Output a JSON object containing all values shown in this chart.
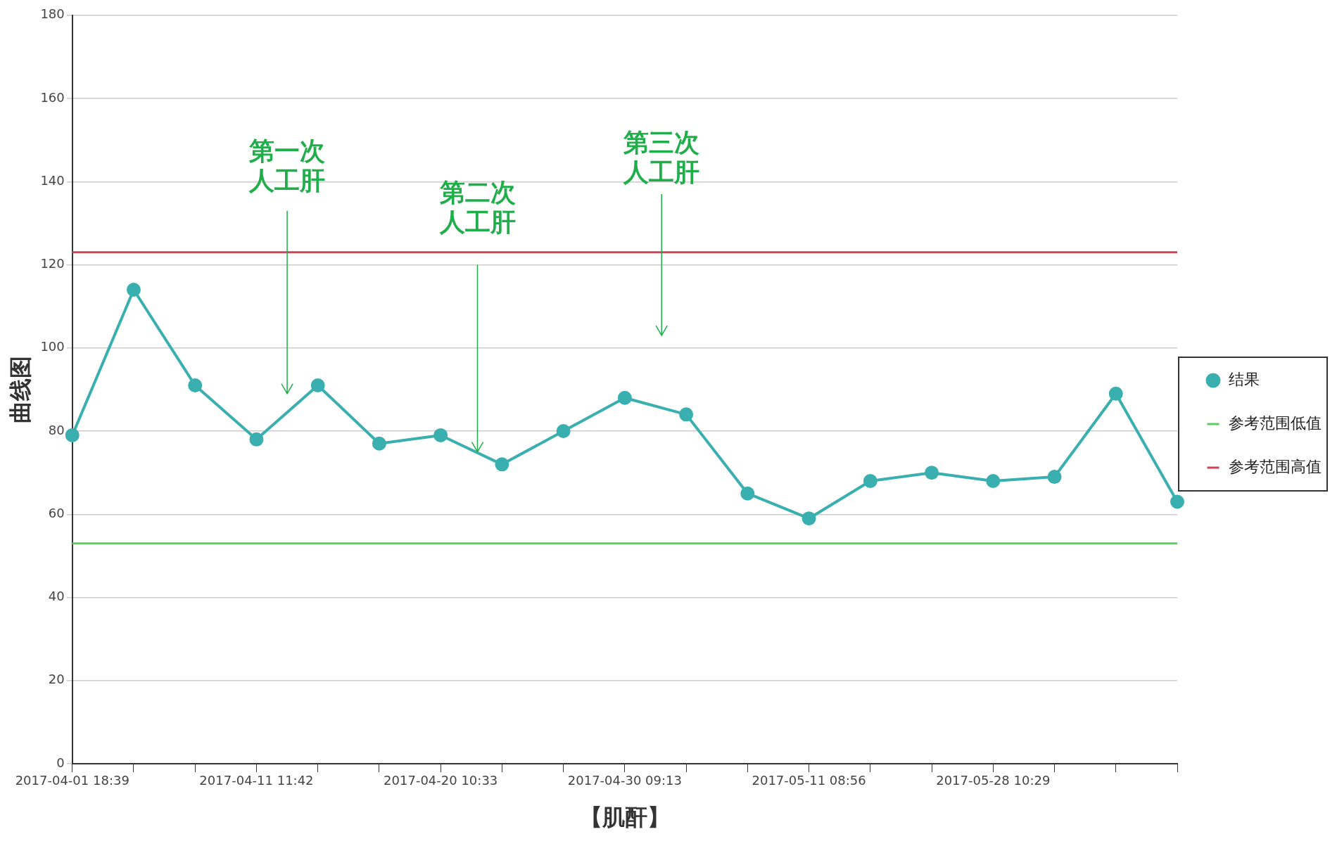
{
  "chart_data": {
    "type": "line",
    "xlabel": "【肌酐】",
    "ylabel": "曲线图",
    "categories": [
      "2017-04-01 18:39",
      null,
      null,
      "2017-04-11 11:42",
      null,
      null,
      "2017-04-20 10:33",
      null,
      null,
      "2017-04-30 09:13",
      null,
      null,
      "2017-05-11 08:56",
      null,
      null,
      "2017-05-28 10:29",
      null,
      null,
      null
    ],
    "series": [
      {
        "name": "结果",
        "color": "#3aafb0",
        "values": [
          79,
          114,
          91,
          78,
          91,
          77,
          79,
          72,
          80,
          88,
          84,
          65,
          59,
          68,
          70,
          68,
          69,
          89,
          63
        ]
      },
      {
        "name": "参考范围低值",
        "color": "#5ccc5c",
        "marker": "none",
        "values": [
          53,
          53,
          53,
          53,
          53,
          53,
          53,
          53,
          53,
          53,
          53,
          53,
          53,
          53,
          53,
          53,
          53,
          53,
          53
        ]
      },
      {
        "name": "参考范围高值",
        "color": "#cc4455",
        "marker": "none",
        "values": [
          123,
          123,
          123,
          123,
          123,
          123,
          123,
          123,
          123,
          123,
          123,
          123,
          123,
          123,
          123,
          123,
          123,
          123,
          123
        ]
      }
    ],
    "ylim": [
      0,
      180
    ],
    "yticks": [
      0,
      20,
      40,
      60,
      80,
      100,
      120,
      140,
      160,
      180
    ],
    "grid": "y",
    "legend": "right",
    "marker": "circle",
    "annotations": [
      "第一次人工肝",
      {
        "text": "第二次人工肝",
        "y": 75
      },
      "第三次人工肝"
    ]
  }
}
